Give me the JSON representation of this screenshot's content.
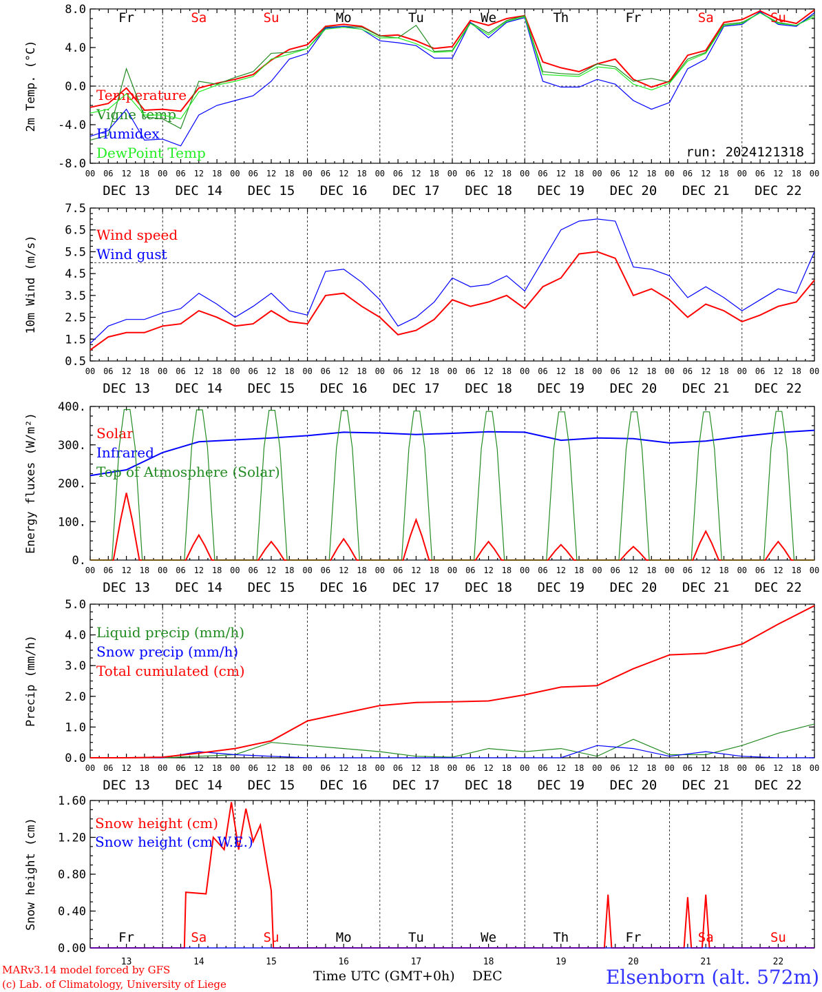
{
  "colors": {
    "red": "#ff0000",
    "green": "#228b22",
    "blue": "#0000ff",
    "lightgreen": "#22ee22",
    "weekday": "#000000",
    "weekend": "#ff0000"
  },
  "hour_ticks": [
    "00",
    "06",
    "12",
    "18"
  ],
  "dates": [
    "DEC 13",
    "DEC 14",
    "DEC 15",
    "DEC 16",
    "DEC 17",
    "DEC 18",
    "DEC 19",
    "DEC 20",
    "DEC 21",
    "DEC 22"
  ],
  "date_numbers": [
    "13",
    "14",
    "15",
    "16",
    "17",
    "18",
    "19",
    "20",
    "21",
    "22"
  ],
  "weekdays": [
    "Fr",
    "Sa",
    "Su",
    "Mo",
    "Tu",
    "We",
    "Th",
    "Fr",
    "Sa",
    "Su"
  ],
  "weekend_flags": [
    false,
    true,
    true,
    false,
    false,
    false,
    false,
    false,
    true,
    true
  ],
  "run_label": "run: 2024121318",
  "footer": {
    "model": "MARv3.14 model forced by GFS",
    "copyright": "(c) Lab. of Climatology, University of Liege",
    "xlabel": "Time UTC (GMT+0h)",
    "month": "DEC",
    "station": "Elsenborn (alt. 572m)"
  },
  "chart_data": [
    {
      "type": "line",
      "ylabel": "2m Temp. (°C)",
      "ylim": [
        -8,
        8
      ],
      "yticks": [
        "8.0",
        "4.0",
        "0.0",
        "-4.0",
        "-8.0"
      ],
      "hline": 0,
      "x_days": [
        0,
        0.25,
        0.5,
        0.75,
        1,
        1.25,
        1.5,
        1.75,
        2,
        2.25,
        2.5,
        2.75,
        3,
        3.25,
        3.5,
        3.75,
        4,
        4.25,
        4.5,
        4.75,
        5,
        5.25,
        5.5,
        5.75,
        6,
        6.25,
        6.5,
        6.75,
        7,
        7.25,
        7.5,
        7.75,
        8,
        8.25,
        8.5,
        8.75,
        9,
        9.25,
        9.5,
        9.75,
        10
      ],
      "series": [
        {
          "name": "Temperature",
          "color": "red",
          "values": [
            -2.2,
            -1.8,
            -0.2,
            -2.5,
            -2.4,
            -2.6,
            -0.2,
            0.3,
            0.7,
            1.2,
            2.7,
            3.8,
            4.3,
            6.2,
            6.4,
            6.2,
            5.2,
            5.3,
            4.7,
            3.9,
            4.1,
            6.8,
            6.3,
            7.0,
            7.3,
            2.5,
            1.9,
            1.5,
            2.3,
            2.8,
            0.7,
            -0.1,
            0.5,
            3.2,
            3.7,
            6.6,
            6.9,
            7.8,
            6.9,
            6.5,
            7.9
          ]
        },
        {
          "name": "Vigne temp",
          "color": "green",
          "values": [
            -5.6,
            -5.1,
            1.8,
            -3.2,
            -3.4,
            -4.4,
            0.5,
            0.2,
            0.9,
            1.5,
            3.4,
            3.5,
            3.9,
            6.1,
            6.2,
            6.1,
            5.2,
            5.0,
            6.3,
            3.6,
            3.7,
            6.6,
            5.5,
            6.8,
            7.3,
            1.5,
            1.3,
            1.2,
            2.3,
            2.0,
            0.5,
            0.8,
            0.4,
            2.8,
            3.5,
            6.4,
            6.6,
            7.6,
            6.6,
            6.3,
            7.4
          ]
        },
        {
          "name": "Humidex",
          "color": "blue",
          "values": [
            -5.2,
            -4.6,
            -2.4,
            -5.6,
            -5.5,
            -6.2,
            -3.0,
            -2.0,
            -1.5,
            -1.0,
            0.5,
            2.8,
            3.4,
            6.0,
            6.2,
            5.9,
            4.7,
            4.5,
            4.2,
            2.9,
            2.9,
            6.6,
            5.0,
            6.6,
            7.1,
            0.5,
            -0.1,
            -0.1,
            0.7,
            0.2,
            -1.5,
            -2.4,
            -1.7,
            1.8,
            2.8,
            6.2,
            6.4,
            7.7,
            6.4,
            6.2,
            7.6
          ]
        },
        {
          "name": "DewPoint Temp",
          "color": "lightgreen",
          "values": [
            -2.8,
            -2.4,
            -0.8,
            -3.0,
            -3.0,
            -3.4,
            -0.6,
            0.1,
            0.5,
            1.0,
            2.8,
            3.3,
            3.9,
            5.9,
            6.1,
            5.9,
            5.0,
            5.0,
            4.4,
            3.5,
            3.6,
            6.5,
            5.3,
            6.7,
            7.2,
            1.2,
            1.1,
            1.0,
            2.0,
            1.8,
            0.2,
            -0.4,
            0.3,
            2.6,
            3.4,
            6.3,
            6.5,
            7.6,
            6.5,
            6.3,
            7.2
          ]
        }
      ]
    },
    {
      "type": "line",
      "ylabel": "10m Wind (m/s)",
      "ylim": [
        0.5,
        7.5
      ],
      "yticks": [
        "7.5",
        "6.5",
        "5.5",
        "4.5",
        "3.5",
        "2.5",
        "1.5",
        "0.5"
      ],
      "hline": 5.0,
      "x_days": [
        0,
        0.25,
        0.5,
        0.75,
        1,
        1.25,
        1.5,
        1.75,
        2,
        2.25,
        2.5,
        2.75,
        3,
        3.25,
        3.5,
        3.75,
        4,
        4.25,
        4.5,
        4.75,
        5,
        5.25,
        5.5,
        5.75,
        6,
        6.25,
        6.5,
        6.75,
        7,
        7.25,
        7.5,
        7.75,
        8,
        8.25,
        8.5,
        8.75,
        9,
        9.25,
        9.5,
        9.75,
        10
      ],
      "series": [
        {
          "name": "Wind speed",
          "color": "red",
          "values": [
            1.0,
            1.6,
            1.8,
            1.8,
            2.1,
            2.2,
            2.8,
            2.5,
            2.1,
            2.2,
            2.8,
            2.3,
            2.2,
            3.5,
            3.6,
            3.0,
            2.5,
            1.7,
            1.9,
            2.4,
            3.3,
            3.0,
            3.2,
            3.5,
            2.9,
            3.9,
            4.3,
            5.4,
            5.5,
            5.2,
            3.5,
            3.8,
            3.3,
            2.5,
            3.1,
            2.8,
            2.3,
            2.6,
            3.0,
            3.2,
            4.2
          ]
        },
        {
          "name": "Wind gust",
          "color": "blue",
          "values": [
            1.3,
            2.1,
            2.4,
            2.4,
            2.7,
            2.9,
            3.6,
            3.1,
            2.5,
            3.0,
            3.6,
            2.8,
            2.6,
            4.6,
            4.7,
            4.1,
            3.3,
            2.1,
            2.5,
            3.2,
            4.3,
            3.9,
            4.0,
            4.4,
            3.7,
            5.1,
            6.5,
            6.9,
            7.0,
            6.9,
            4.8,
            4.7,
            4.4,
            3.4,
            3.9,
            3.4,
            2.8,
            3.3,
            3.8,
            3.6,
            5.5
          ]
        }
      ]
    },
    {
      "type": "line",
      "ylabel": "Energy fluxes (W/m²)",
      "ylim": [
        0,
        400
      ],
      "yticks": [
        "400.",
        "300.",
        "200.",
        "100.",
        "0."
      ],
      "series": [
        {
          "name": "Solar",
          "color": "red",
          "peaks": [
            175,
            65,
            48,
            55,
            105,
            48,
            40,
            35,
            75,
            48
          ]
        },
        {
          "name": "Infrared",
          "color": "blue",
          "x_days": [
            0,
            0.5,
            1,
            1.5,
            2,
            2.5,
            3,
            3.5,
            4,
            4.5,
            5,
            5.5,
            6,
            6.5,
            7,
            7.5,
            8,
            8.5,
            9,
            9.5,
            10
          ],
          "values": [
            220,
            235,
            280,
            308,
            313,
            318,
            324,
            333,
            331,
            327,
            330,
            334,
            333,
            312,
            318,
            316,
            305,
            310,
            322,
            332,
            338
          ]
        },
        {
          "name": "Top of Atmosphere (Solar)",
          "color": "green",
          "peaks": [
            392,
            391,
            390,
            389,
            388,
            387,
            386,
            386,
            386,
            387
          ]
        }
      ]
    },
    {
      "type": "line",
      "ylabel": "Precip (mm/h)",
      "ylim": [
        0,
        5
      ],
      "yticks": [
        "5.0",
        "4.0",
        "3.0",
        "2.0",
        "1.0",
        "0.0"
      ],
      "x_days": [
        0,
        0.5,
        1,
        1.5,
        2,
        2.5,
        3,
        3.5,
        4,
        4.5,
        5,
        5.5,
        6,
        6.5,
        7,
        7.5,
        8,
        8.5,
        9,
        9.5,
        10
      ],
      "series": [
        {
          "name": "Liquid precip (mm/h)",
          "color": "green",
          "values": [
            0,
            0,
            0,
            0.05,
            0.1,
            0.5,
            0.4,
            0.3,
            0.2,
            0.05,
            0.02,
            0.3,
            0.2,
            0.3,
            0.05,
            0.6,
            0.1,
            0.1,
            0.4,
            0.8,
            1.1
          ]
        },
        {
          "name": "Snow precip (mm/h)",
          "color": "blue",
          "values": [
            0,
            0,
            0,
            0.2,
            0.1,
            0.05,
            0,
            0,
            0,
            0,
            0,
            0,
            0,
            0,
            0.4,
            0.3,
            0.05,
            0.2,
            0.05,
            0,
            0
          ]
        },
        {
          "name": "Total cumulated (cm)",
          "color": "red",
          "values": [
            0,
            0,
            0.02,
            0.15,
            0.3,
            0.55,
            1.2,
            1.45,
            1.7,
            1.8,
            1.82,
            1.85,
            2.05,
            2.3,
            2.35,
            2.9,
            3.35,
            3.4,
            3.7,
            4.35,
            4.95
          ]
        }
      ]
    },
    {
      "type": "line",
      "ylabel": "Snow height (cm)",
      "ylim": [
        0,
        1.8
      ],
      "yticks": [
        "1.60",
        "1.20",
        "0.80",
        "0.40",
        "0.00"
      ],
      "series": [
        {
          "name": "Snow height (cm)",
          "color": "red",
          "x_days": [
            0,
            1.3,
            1.32,
            1.6,
            1.7,
            1.85,
            1.95,
            2.05,
            2.15,
            2.25,
            2.35,
            2.5,
            2.53,
            2.6,
            3.0,
            7.1,
            7.15,
            7.2,
            8.2,
            8.25,
            8.3,
            8.45,
            8.5,
            8.55,
            10
          ],
          "values": [
            0,
            0,
            0.68,
            0.66,
            1.35,
            1.2,
            1.78,
            1.2,
            1.7,
            1.3,
            1.5,
            0.7,
            0,
            0,
            0,
            0,
            0.65,
            0,
            0,
            0.62,
            0,
            0,
            0.65,
            0,
            0
          ]
        },
        {
          "name": "Snow height (cm W.E.)",
          "color": "blue",
          "x_days": [
            0,
            10
          ],
          "values": [
            0,
            0
          ]
        }
      ]
    }
  ]
}
